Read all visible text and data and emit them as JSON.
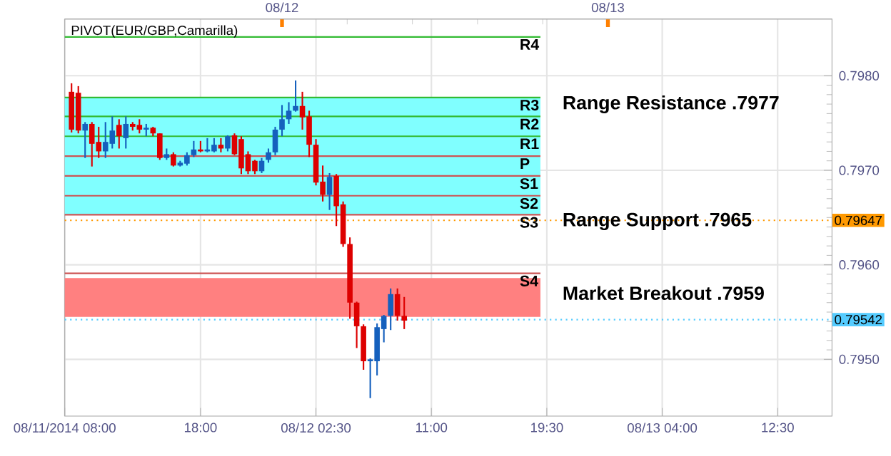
{
  "chart_data": {
    "type": "candlestick",
    "title": "PIVOT(EUR/GBP,Camarilla)",
    "x": [
      "2014-08-11T08:30",
      "2014-08-11T09:00",
      "2014-08-11T09:30",
      "2014-08-11T10:00",
      "2014-08-11T10:30",
      "2014-08-11T11:00",
      "2014-08-11T11:30",
      "2014-08-11T12:00",
      "2014-08-11T12:30",
      "2014-08-11T13:00",
      "2014-08-11T13:30",
      "2014-08-11T14:00",
      "2014-08-11T14:30",
      "2014-08-11T15:00",
      "2014-08-11T15:30",
      "2014-08-11T16:00",
      "2014-08-11T16:30",
      "2014-08-11T17:00",
      "2014-08-11T17:30",
      "2014-08-11T18:00",
      "2014-08-11T18:30",
      "2014-08-11T19:00",
      "2014-08-11T19:30",
      "2014-08-11T20:00",
      "2014-08-11T20:30",
      "2014-08-11T21:00",
      "2014-08-11T21:30",
      "2014-08-11T22:00",
      "2014-08-11T22:30",
      "2014-08-11T23:00",
      "2014-08-11T23:30",
      "2014-08-12T00:00",
      "2014-08-12T00:30",
      "2014-08-12T01:00",
      "2014-08-12T01:30",
      "2014-08-12T02:00",
      "2014-08-12T02:30",
      "2014-08-12T03:00",
      "2014-08-12T03:30",
      "2014-08-12T04:00",
      "2014-08-12T04:30",
      "2014-08-12T05:00",
      "2014-08-12T05:30",
      "2014-08-12T06:00",
      "2014-08-12T06:30",
      "2014-08-12T07:00",
      "2014-08-12T07:30",
      "2014-08-12T08:00",
      "2014-08-12T08:30",
      "2014-08-12T09:00"
    ],
    "ohlc": [
      [
        0.79783,
        0.79792,
        0.7974,
        0.79743
      ],
      [
        0.79782,
        0.79789,
        0.79739,
        0.79742
      ],
      [
        0.79742,
        0.79751,
        0.79713,
        0.79749
      ],
      [
        0.79749,
        0.79751,
        0.79704,
        0.79728
      ],
      [
        0.7973,
        0.79746,
        0.79713,
        0.7972
      ],
      [
        0.7972,
        0.79751,
        0.79713,
        0.7973
      ],
      [
        0.79728,
        0.79757,
        0.79723,
        0.79742
      ],
      [
        0.79748,
        0.79754,
        0.79723,
        0.79736
      ],
      [
        0.79734,
        0.79757,
        0.79723,
        0.79749
      ],
      [
        0.79749,
        0.79751,
        0.79742,
        0.79746
      ],
      [
        0.79748,
        0.79754,
        0.79739,
        0.79743
      ],
      [
        0.79743,
        0.79749,
        0.79736,
        0.79745
      ],
      [
        0.79745,
        0.79746,
        0.79736,
        0.79739
      ],
      [
        0.79739,
        0.79739,
        0.79711,
        0.79713
      ],
      [
        0.79713,
        0.79723,
        0.79711,
        0.79717
      ],
      [
        0.79717,
        0.79719,
        0.79704,
        0.79705
      ],
      [
        0.79705,
        0.7971,
        0.79704,
        0.79708
      ],
      [
        0.79707,
        0.79719,
        0.79705,
        0.79716
      ],
      [
        0.79716,
        0.79731,
        0.79714,
        0.79722
      ],
      [
        0.79722,
        0.79731,
        0.79719,
        0.7972
      ],
      [
        0.7972,
        0.79734,
        0.79719,
        0.79722
      ],
      [
        0.7972,
        0.79734,
        0.79719,
        0.79727
      ],
      [
        0.79727,
        0.79734,
        0.79719,
        0.79723
      ],
      [
        0.79723,
        0.79737,
        0.7972,
        0.79736
      ],
      [
        0.79737,
        0.79739,
        0.79716,
        0.79717
      ],
      [
        0.79733,
        0.79736,
        0.79696,
        0.79702
      ],
      [
        0.79717,
        0.7972,
        0.79696,
        0.79699
      ],
      [
        0.7971,
        0.79711,
        0.79696,
        0.79699
      ],
      [
        0.79699,
        0.79713,
        0.79697,
        0.7971
      ],
      [
        0.79711,
        0.79723,
        0.79708,
        0.79719
      ],
      [
        0.79719,
        0.79746,
        0.79716,
        0.79743
      ],
      [
        0.79743,
        0.79769,
        0.79736,
        0.79754
      ],
      [
        0.79754,
        0.79772,
        0.79749,
        0.79763
      ],
      [
        0.79763,
        0.79795,
        0.79762,
        0.79768
      ],
      [
        0.79768,
        0.79783,
        0.79743,
        0.79756
      ],
      [
        0.79757,
        0.79763,
        0.79714,
        0.79727
      ],
      [
        0.79727,
        0.79733,
        0.79684,
        0.79687
      ],
      [
        0.79688,
        0.79705,
        0.79667,
        0.79674
      ],
      [
        0.79674,
        0.79697,
        0.79658,
        0.79693
      ],
      [
        0.79694,
        0.79696,
        0.79641,
        0.79662
      ],
      [
        0.79664,
        0.79667,
        0.79619,
        0.79622
      ],
      [
        0.79622,
        0.79629,
        0.79543,
        0.7956
      ],
      [
        0.7956,
        0.79561,
        0.79512,
        0.79535
      ],
      [
        0.79535,
        0.79537,
        0.79489,
        0.79498
      ],
      [
        0.79498,
        0.79501,
        0.79459,
        0.795
      ],
      [
        0.79498,
        0.79538,
        0.79483,
        0.79534
      ],
      [
        0.79532,
        0.79547,
        0.79518,
        0.79546
      ],
      [
        0.79546,
        0.79575,
        0.79531,
        0.79569
      ],
      [
        0.79569,
        0.79575,
        0.79541,
        0.79546
      ],
      [
        0.79546,
        0.79566,
        0.79532,
        0.79541
      ]
    ],
    "xlim": [
      "2014-08-11T08:00",
      "2014-08-13T16:30"
    ],
    "xticks": [
      {
        "value": "2014-08-11T08:00",
        "label": "08/11/2014 08:00"
      },
      {
        "value": "2014-08-11T18:00",
        "label": "18:00"
      },
      {
        "value": "2014-08-12T02:30",
        "label": "08/12 02:30"
      },
      {
        "value": "2014-08-12T11:00",
        "label": "11:00"
      },
      {
        "value": "2014-08-12T19:30",
        "label": "19:30"
      },
      {
        "value": "2014-08-13T04:00",
        "label": "08/13 04:00"
      },
      {
        "value": "2014-08-13T12:30",
        "label": "12:30"
      }
    ],
    "x2lim": [
      "2014-08-11T08:00",
      "2014-08-13T16:30"
    ],
    "x2ticks": [
      {
        "value": "2014-08-12T00:00",
        "label": "08/12"
      },
      {
        "value": "2014-08-13T00:00",
        "label": "08/13"
      }
    ],
    "ylim": [
      0.7944,
      0.7986
    ],
    "yticks": [
      {
        "value": 0.795,
        "label": "0.7950"
      },
      {
        "value": 0.796,
        "label": "0.7960"
      },
      {
        "value": 0.797,
        "label": "0.7970"
      },
      {
        "value": 0.798,
        "label": "0.7980"
      }
    ],
    "grid": true,
    "bands": [
      {
        "axis": "y",
        "from": 0.79653,
        "to": 0.79777,
        "color": "#80ffff"
      },
      {
        "axis": "y",
        "from": 0.79545,
        "to": 0.79586,
        "color": "#ff8080"
      }
    ],
    "ref_lines": [
      {
        "axis": "y",
        "value": 0.79841,
        "label": "R4",
        "color": "#33bb33"
      },
      {
        "axis": "y",
        "value": 0.79777,
        "label": "R3",
        "color": "#33bb33"
      },
      {
        "axis": "y",
        "value": 0.79757,
        "label": "R2",
        "color": "#33bb33"
      },
      {
        "axis": "y",
        "value": 0.79736,
        "label": "R1",
        "color": "#33bb33"
      },
      {
        "axis": "y",
        "value": 0.79715,
        "label": "P",
        "color": "#cc5555"
      },
      {
        "axis": "y",
        "value": 0.79694,
        "label": "S1",
        "color": "#cc5555"
      },
      {
        "axis": "y",
        "value": 0.79673,
        "label": "S2",
        "color": "#cc5555"
      },
      {
        "axis": "y",
        "value": 0.79653,
        "label": "S3",
        "color": "#cc5555"
      },
      {
        "axis": "y",
        "value": 0.79591,
        "label": "S4",
        "color": "#cc5555"
      },
      {
        "axis": "y",
        "value": 0.79647,
        "label": "0.79647",
        "color": "#ff9900",
        "line_style": "dotted"
      },
      {
        "axis": "y",
        "value": 0.79542,
        "label": "0.79542",
        "color": "#55ccff",
        "line_style": "dotted"
      }
    ],
    "annotations": [
      "Range Resistance .7977",
      "Range Support .7965",
      "Market Breakout .7959"
    ]
  }
}
